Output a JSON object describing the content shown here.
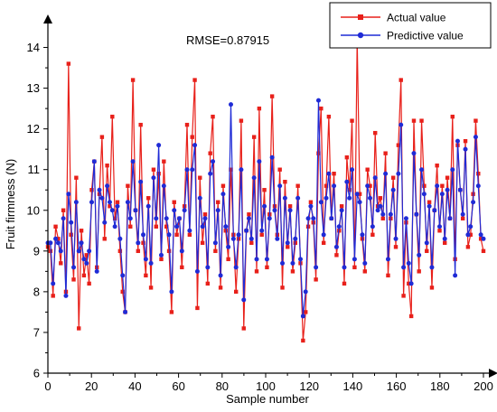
{
  "chart_data": {
    "type": "line",
    "annotation": "RMSE=0.87915",
    "xlabel": "Sample number",
    "ylabel": "Fruit firmness (N)",
    "xlim": [
      0,
      200
    ],
    "ylim": [
      6,
      14.5
    ],
    "x_ticks": [
      "0",
      "20",
      "40",
      "60",
      "80",
      "100",
      "120",
      "140",
      "160",
      "180",
      "200"
    ],
    "y_ticks": [
      "6",
      "7",
      "8",
      "9",
      "10",
      "11",
      "12",
      "13",
      "14"
    ],
    "legend_position": "top-right",
    "series": [
      {
        "name": "Actual value",
        "color": "#e8201a",
        "marker": "square",
        "values": [
          9.1,
          9.0,
          7.9,
          9.6,
          9.3,
          8.7,
          10.0,
          8.0,
          13.6,
          9.4,
          8.3,
          10.8,
          7.1,
          9.5,
          8.4,
          8.9,
          8.2,
          10.5,
          11.2,
          8.6,
          10.4,
          11.8,
          9.3,
          11.1,
          10.1,
          12.3,
          9.8,
          10.2,
          9.0,
          8.0,
          7.5,
          10.6,
          9.6,
          13.2,
          10.0,
          9.0,
          12.1,
          9.2,
          8.4,
          10.3,
          8.1,
          11.0,
          9.6,
          10.9,
          8.8,
          11.2,
          9.6,
          9.0,
          7.5,
          10.2,
          9.4,
          9.8,
          8.6,
          10.1,
          12.1,
          9.4,
          11.8,
          13.2,
          7.6,
          10.8,
          9.2,
          9.9,
          8.2,
          11.4,
          12.3,
          9.0,
          10.2,
          8.1,
          10.6,
          9.5,
          8.8,
          11.0,
          9.4,
          8.0,
          9.3,
          12.2,
          7.1,
          9.5,
          9.9,
          9.2,
          11.8,
          8.5,
          12.5,
          9.4,
          10.5,
          8.6,
          9.9,
          12.8,
          10.1,
          9.4,
          11.0,
          8.1,
          10.7,
          9.1,
          10.1,
          8.5,
          9.2,
          10.6,
          8.7,
          6.8,
          7.5,
          9.6,
          10.2,
          9.7,
          8.3,
          11.4,
          12.5,
          9.2,
          10.6,
          12.3,
          9.8,
          10.9,
          8.9,
          9.5,
          10.1,
          8.2,
          11.3,
          10.5,
          12.2,
          8.6,
          14.2,
          10.4,
          9.3,
          8.5,
          11.0,
          10.6,
          9.4,
          11.9,
          10.1,
          10.3,
          9.8,
          11.4,
          8.4,
          9.8,
          10.8,
          9.1,
          11.6,
          13.2,
          7.9,
          9.7,
          8.2,
          7.4,
          12.2,
          9.9,
          8.5,
          12.2,
          10.6,
          9.0,
          10.2,
          8.1,
          10.0,
          11.1,
          9.5,
          10.6,
          9.2,
          10.8,
          9.8,
          12.3,
          8.8,
          11.6,
          10.5,
          9.8,
          11.7,
          9.1,
          9.4,
          10.4,
          12.2,
          10.9,
          9.3,
          9.0
        ]
      },
      {
        "name": "Predictive value",
        "color": "#1f2bd6",
        "marker": "circle",
        "values": [
          9.2,
          9.2,
          8.2,
          9.3,
          9.2,
          9.0,
          9.8,
          7.9,
          10.4,
          9.7,
          8.6,
          10.2,
          9.0,
          9.2,
          8.8,
          8.7,
          9.0,
          10.2,
          11.2,
          8.5,
          10.5,
          10.3,
          9.7,
          10.6,
          10.2,
          10.0,
          9.6,
          10.1,
          9.3,
          8.4,
          7.5,
          10.2,
          9.8,
          11.2,
          10.0,
          9.2,
          10.7,
          9.4,
          8.8,
          10.1,
          8.7,
          10.8,
          9.8,
          11.6,
          8.9,
          10.6,
          9.8,
          9.4,
          8.0,
          10.0,
          9.6,
          9.8,
          9.0,
          10.0,
          11.0,
          9.5,
          11.0,
          11.6,
          8.5,
          10.3,
          9.6,
          9.8,
          8.6,
          10.9,
          11.2,
          9.2,
          10.0,
          8.4,
          10.4,
          9.6,
          9.1,
          12.6,
          9.3,
          8.6,
          9.4,
          11.0,
          7.8,
          9.5,
          9.8,
          9.3,
          10.8,
          8.8,
          11.2,
          9.5,
          10.1,
          8.8,
          9.8,
          11.3,
          10.0,
          9.3,
          10.6,
          8.7,
          10.3,
          9.2,
          10.0,
          8.7,
          9.3,
          10.3,
          8.8,
          7.4,
          8.0,
          9.8,
          10.1,
          9.8,
          8.6,
          12.7,
          10.2,
          9.4,
          10.3,
          10.9,
          9.8,
          10.6,
          9.1,
          9.6,
          10.0,
          8.6,
          10.7,
          10.3,
          11.0,
          8.8,
          10.4,
          10.2,
          9.4,
          8.7,
          10.6,
          10.3,
          9.6,
          10.8,
          10.0,
          10.1,
          9.9,
          10.9,
          8.8,
          9.9,
          10.5,
          9.3,
          10.9,
          12.1,
          8.6,
          9.8,
          8.7,
          8.2,
          11.4,
          9.9,
          8.9,
          11.0,
          10.4,
          9.2,
          10.1,
          8.6,
          10.0,
          10.6,
          9.6,
          10.4,
          9.3,
          10.5,
          9.8,
          11.0,
          8.4,
          11.7,
          10.5,
          9.9,
          11.5,
          9.4,
          9.6,
          10.2,
          11.8,
          10.6,
          9.4,
          9.3
        ]
      }
    ]
  }
}
